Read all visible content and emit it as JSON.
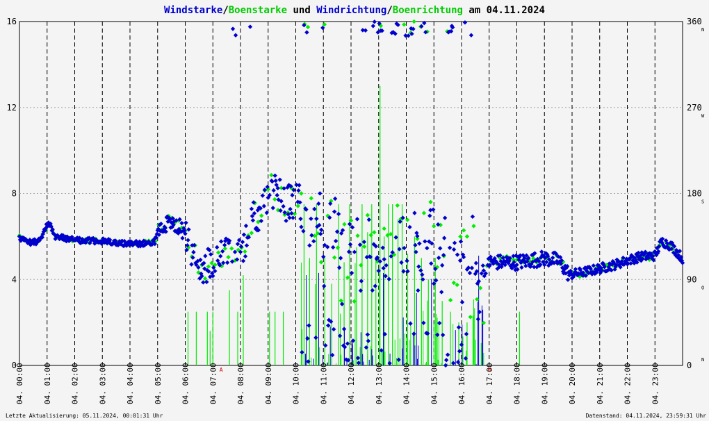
{
  "title": {
    "parts": [
      {
        "text": "Windstarke",
        "color": "#0000cc"
      },
      {
        "text": "/",
        "color": "#000000"
      },
      {
        "text": "Boenstarke",
        "color": "#00cc00"
      },
      {
        "text": " und ",
        "color": "#000000"
      },
      {
        "text": "Windrichtung",
        "color": "#0000cc"
      },
      {
        "text": "/",
        "color": "#000000"
      },
      {
        "text": "Boenrichtung",
        "color": "#00cc00"
      },
      {
        "text": " am 04.11.2024",
        "color": "#000000"
      }
    ]
  },
  "footer": {
    "left": "Letzte Aktualisierung: 05.11.2024, 00:01:31 Uhr",
    "right": "Datenstand: 04.11.2024, 23:59:31 Uhr"
  },
  "colors": {
    "wind": "#0000cc",
    "gust": "#00ee00",
    "grid_dash": "#000000",
    "grid_dot": "#aaaaaa",
    "marker": "#cc0000",
    "background": "#f4f4f4"
  },
  "chart_data": {
    "type": "scatter",
    "xlim": [
      0,
      24
    ],
    "ylim": [
      0,
      16
    ],
    "y2lim": [
      0,
      360
    ],
    "y_ticks": [
      "0",
      "4",
      "8",
      "12",
      "16"
    ],
    "y2_ticks": [
      "0",
      "90",
      "180",
      "270",
      "360"
    ],
    "y2_compass": [
      "N",
      "O",
      "S",
      "W",
      "N"
    ],
    "x_ticks": [
      "04. 00:00",
      "04. 01:00",
      "04. 02:00",
      "04. 03:00",
      "04. 04:00",
      "04. 05:00",
      "04. 06:00",
      "04. 07:00",
      "04. 08:00",
      "04. 09:00",
      "04. 10:00",
      "04. 11:00",
      "04. 12:00",
      "04. 13:00",
      "04. 14:00",
      "04. 15:00",
      "04. 16:00",
      "04. 17:00",
      "04. 18:00",
      "04. 19:00",
      "04. 20:00",
      "04. 21:00",
      "04. 22:00",
      "04. 23:00"
    ],
    "markers": [
      {
        "x": 7.3,
        "label": "A"
      },
      {
        "x": 17.0,
        "label": "U"
      }
    ],
    "wind_direction_profile": [
      [
        0.0,
        134
      ],
      [
        0.3,
        129
      ],
      [
        0.7,
        130
      ],
      [
        0.9,
        140
      ],
      [
        1.05,
        150
      ],
      [
        1.3,
        135
      ],
      [
        2.0,
        131
      ],
      [
        3.0,
        130
      ],
      [
        3.5,
        129
      ],
      [
        4.0,
        127
      ],
      [
        4.5,
        128
      ],
      [
        4.9,
        130
      ],
      [
        5.0,
        140
      ],
      [
        5.4,
        150
      ],
      [
        5.8,
        145
      ],
      [
        6.1,
        130
      ],
      [
        6.3,
        115
      ],
      [
        6.7,
        100
      ],
      [
        7.0,
        110
      ],
      [
        7.3,
        115
      ],
      [
        7.7,
        120
      ],
      [
        8.0,
        125
      ],
      [
        8.3,
        140
      ],
      [
        8.7,
        165
      ],
      [
        9.0,
        185
      ],
      [
        9.4,
        175
      ],
      [
        9.8,
        170
      ],
      [
        10.1,
        170
      ],
      [
        10.5,
        155
      ],
      [
        11.0,
        140
      ],
      [
        11.5,
        125
      ],
      [
        12.0,
        120
      ],
      [
        12.5,
        115
      ],
      [
        13.0,
        110
      ],
      [
        13.5,
        120
      ],
      [
        14.0,
        125
      ],
      [
        14.5,
        125
      ],
      [
        15.0,
        120
      ],
      [
        15.5,
        115
      ],
      [
        16.0,
        110
      ],
      [
        16.3,
        95
      ],
      [
        16.7,
        85
      ],
      [
        17.0,
        108
      ],
      [
        17.5,
        108
      ],
      [
        18.0,
        108
      ],
      [
        18.5,
        110
      ],
      [
        19.0,
        112
      ],
      [
        19.5,
        110
      ],
      [
        19.9,
        95
      ],
      [
        20.3,
        97
      ],
      [
        20.8,
        100
      ],
      [
        21.5,
        105
      ],
      [
        22.0,
        110
      ],
      [
        22.5,
        114
      ],
      [
        23.0,
        115
      ],
      [
        23.25,
        130
      ],
      [
        23.6,
        125
      ],
      [
        24.0,
        112
      ]
    ],
    "wind_speed_bars": [
      {
        "x": 6.1,
        "y": 2.5
      },
      {
        "x": 6.4,
        "y": 2.5
      },
      {
        "x": 6.8,
        "y": 2.5
      },
      {
        "x": 6.9,
        "y": 1.6
      },
      {
        "x": 7.0,
        "y": 2.5
      },
      {
        "x": 7.6,
        "y": 3.5
      },
      {
        "x": 7.9,
        "y": 2.5
      },
      {
        "x": 8.1,
        "y": 4.2
      },
      {
        "x": 9.05,
        "y": 2.5
      },
      {
        "x": 9.25,
        "y": 2.5
      },
      {
        "x": 9.55,
        "y": 2.5
      },
      {
        "x": 10.3,
        "y": 7.5
      },
      {
        "x": 10.5,
        "y": 5.0
      },
      {
        "x": 10.75,
        "y": 7.5
      },
      {
        "x": 11.05,
        "y": 5.0
      },
      {
        "x": 11.3,
        "y": 3.8
      },
      {
        "x": 11.55,
        "y": 7.5
      },
      {
        "x": 11.75,
        "y": 4.8
      },
      {
        "x": 11.95,
        "y": 7.5
      },
      {
        "x": 12.2,
        "y": 5.5
      },
      {
        "x": 12.4,
        "y": 7.5
      },
      {
        "x": 12.6,
        "y": 6.2
      },
      {
        "x": 12.75,
        "y": 7.5
      },
      {
        "x": 12.9,
        "y": 5.0
      },
      {
        "x": 13.05,
        "y": 13.0
      },
      {
        "x": 13.2,
        "y": 6.0
      },
      {
        "x": 13.35,
        "y": 7.5
      },
      {
        "x": 13.5,
        "y": 7.5
      },
      {
        "x": 13.7,
        "y": 6.8
      },
      {
        "x": 13.85,
        "y": 7.5
      },
      {
        "x": 14.05,
        "y": 5.2
      },
      {
        "x": 14.3,
        "y": 6.0
      },
      {
        "x": 14.55,
        "y": 5.0
      },
      {
        "x": 14.8,
        "y": 4.0
      },
      {
        "x": 15.05,
        "y": 5.0
      },
      {
        "x": 15.3,
        "y": 3.0
      },
      {
        "x": 15.6,
        "y": 2.5
      },
      {
        "x": 15.9,
        "y": 2.0
      },
      {
        "x": 16.2,
        "y": 2.0
      },
      {
        "x": 16.5,
        "y": 1.2
      },
      {
        "x": 18.1,
        "y": 2.5
      }
    ],
    "high_direction_bands": [
      [
        7.6,
        7.95
      ],
      [
        8.3,
        8.45
      ],
      [
        10.3,
        10.5
      ],
      [
        10.95,
        11.05
      ],
      [
        12.1,
        12.55
      ],
      [
        12.8,
        13.25
      ],
      [
        13.4,
        13.75
      ],
      [
        13.8,
        14.3
      ],
      [
        14.5,
        14.8
      ],
      [
        15.4,
        15.7
      ],
      [
        16.1,
        16.4
      ]
    ]
  }
}
